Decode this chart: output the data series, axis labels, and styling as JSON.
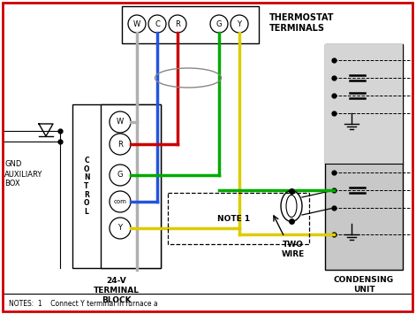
{
  "bg_color": "#ffffff",
  "border_color": "#cc0000",
  "notes_text": "NOTES:  1    Connect Y terminal in furnace a",
  "wire_colors": {
    "W": "#b0b0b0",
    "C": "#2255dd",
    "R": "#cc0000",
    "G": "#00aa00",
    "Y": "#ddcc00"
  },
  "terminal_labels_top": [
    "W",
    "C",
    "R",
    "G",
    "Y"
  ],
  "terminal_labels_ctrl": [
    "W",
    "R",
    "G",
    "com",
    "Y"
  ],
  "thermostat_label1": "THERMOSTAT",
  "thermostat_label2": "TERMINALS",
  "ctrl_label": "C\nO\nN\nT\nR\nO\nL",
  "gnd_text": "GND",
  "aux_text": "AUXILIARY",
  "box_text": "BOX",
  "terminal_block_text": "24-V\nTERMINAL\nBLOCK",
  "condensing_text": "CONDENSING\nUNIT",
  "note1_text": "NOTE 1",
  "two_wire_text": "TWO\nWIRE"
}
